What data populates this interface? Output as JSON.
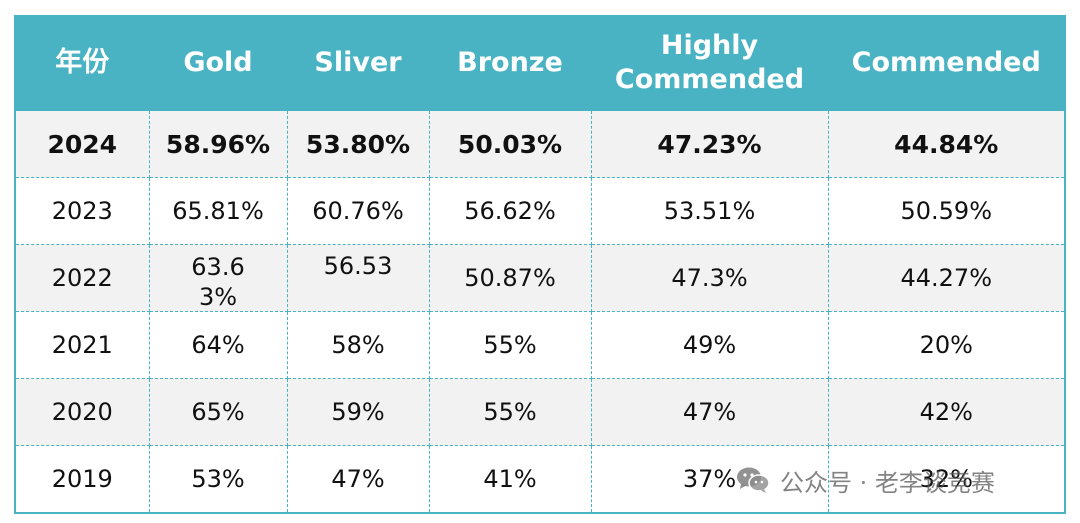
{
  "table": {
    "headers": [
      "年份",
      "Gold",
      "Sliver",
      "Bronze",
      "Highly Commended",
      "Commended"
    ],
    "rows": [
      [
        "2024",
        "58.96%",
        "53.80%",
        "50.03%",
        "47.23%",
        "44.84%"
      ],
      [
        "2023",
        "65.81%",
        "60.76%",
        "56.62%",
        "53.51%",
        "50.59%"
      ],
      [
        "2022",
        "63.63%",
        "56.53",
        "50.87%",
        "47.3%",
        "44.27%"
      ],
      [
        "2021",
        "64%",
        "58%",
        "55%",
        "49%",
        "20%"
      ],
      [
        "2020",
        "65%",
        "59%",
        "55%",
        "47%",
        "42%"
      ],
      [
        "2019",
        "53%",
        "47%",
        "41%",
        "37%",
        "32%"
      ]
    ]
  },
  "watermark": {
    "text": "公众号 · 老李谈竞赛",
    "icon": "wechat-icon"
  },
  "colors": {
    "header_bg": "#4ab3c3",
    "header_text": "#ffffff",
    "row_alt_bg": "#f2f2f2",
    "border": "#4ab3c3"
  }
}
